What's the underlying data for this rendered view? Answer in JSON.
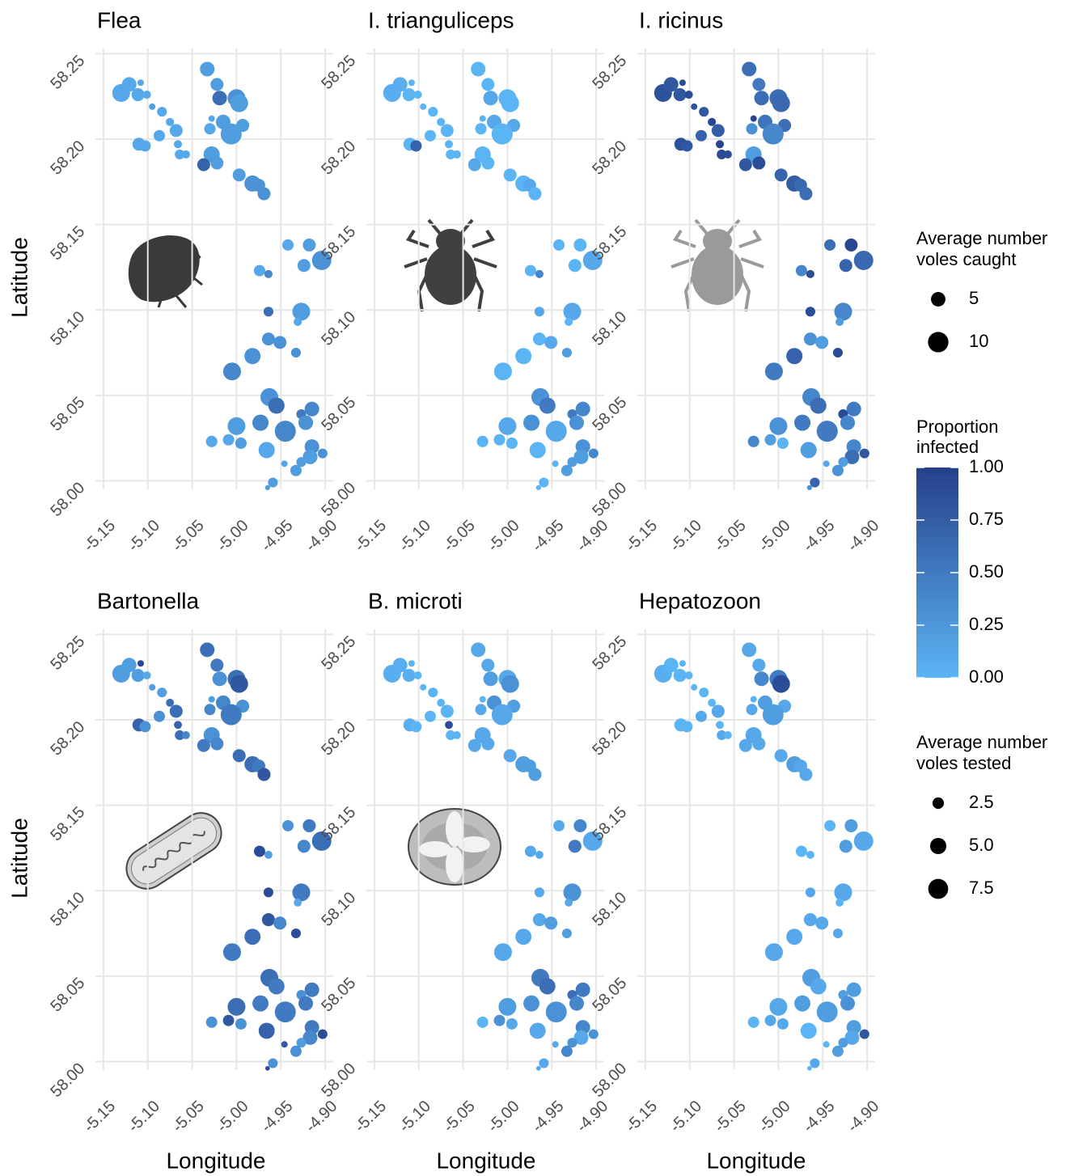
{
  "chart_data": {
    "type": "scatter",
    "x_label": "Longitude",
    "y_label": "Latitude",
    "xlim": [
      -5.159,
      -4.891
    ],
    "ylim": [
      57.995,
      58.253
    ],
    "xticks": [
      -5.15,
      {
        "value": -5.1,
        "label": "-5.10"
      },
      -5.05,
      {
        "value": -5,
        "label": "-5.00"
      },
      -4.95,
      {
        "value": -4.9,
        "label": "-4.90"
      }
    ],
    "yticks": [
      {
        "value": 58,
        "label": "58.00"
      },
      58.05,
      {
        "value": 58.1,
        "label": "58.10"
      },
      58.15,
      {
        "value": 58.2,
        "label": "58.20"
      },
      58.25
    ],
    "grid": true,
    "color_scale": [
      "#5bb4f4",
      "#26408b"
    ],
    "x": [
      -5.13,
      -5.121,
      -5.108,
      -5.111,
      -5.101,
      -5.095,
      -5.084,
      -5.11,
      -5.103,
      -5.087,
      -5.075,
      -5.068,
      -5.066,
      -5.064,
      -5.057,
      -5.033,
      -5.022,
      -5.019,
      -5.028,
      -5.03,
      -5.015,
      -5.0,
      -4.997,
      -4.993,
      -5.006,
      -5.028,
      -5.037,
      -5.022,
      -4.997,
      -4.982,
      -4.975,
      -4.969,
      -4.942,
      -4.918,
      -4.904,
      -4.924,
      -4.974,
      -4.964,
      -4.964,
      -4.927,
      -4.931,
      -4.964,
      -4.951,
      -4.933,
      -4.982,
      -5.005,
      -4.963,
      -4.955,
      -4.915,
      -4.927,
      -4.973,
      -4.922,
      -5.0,
      -4.945,
      -5.028,
      -5.009,
      -4.995,
      -4.966,
      -4.915,
      -4.903,
      -4.917,
      -4.927,
      -4.933,
      -4.946,
      -4.959,
      -4.965
    ],
    "y": [
      58.227,
      58.232,
      58.233,
      58.226,
      58.226,
      58.219,
      58.216,
      58.197,
      58.196,
      58.202,
      58.21,
      58.205,
      58.197,
      58.191,
      58.191,
      58.241,
      58.232,
      58.224,
      58.212,
      58.206,
      58.21,
      58.224,
      58.221,
      58.208,
      58.203,
      58.191,
      58.185,
      58.186,
      58.179,
      58.174,
      58.173,
      58.168,
      58.138,
      58.138,
      58.129,
      58.126,
      58.123,
      58.121,
      58.099,
      58.099,
      58.093,
      58.083,
      58.081,
      58.075,
      58.073,
      58.064,
      58.049,
      58.044,
      58.042,
      58.039,
      58.034,
      58.034,
      58.032,
      58.029,
      58.023,
      58.024,
      58.022,
      58.018,
      58.02,
      58.016,
      58.014,
      58.011,
      58.006,
      58.01,
      57.999,
      57.996
    ],
    "facets": [
      {
        "title": "Flea",
        "sizes": [
          7.6,
          5.1,
          1.0,
          4.0,
          1.6,
          1.0,
          2.3,
          4.0,
          3.1,
          3.1,
          1.6,
          4.0,
          1.6,
          2.3,
          1.6,
          5.1,
          4.0,
          5.1,
          1.0,
          3.1,
          5.1,
          7.6,
          7.6,
          4.0,
          10.6,
          6.3,
          4.0,
          4.0,
          4.0,
          6.3,
          4.0,
          4.0,
          3.1,
          4.0,
          9.0,
          4.0,
          3.1,
          1.6,
          2.3,
          7.6,
          1.6,
          4.0,
          4.0,
          2.3,
          6.3,
          7.6,
          7.6,
          6.3,
          5.1,
          2.3,
          6.3,
          5.1,
          7.6,
          10.6,
          3.1,
          3.1,
          3.1,
          6.3,
          5.1,
          2.3,
          5.1,
          2.3,
          3.1,
          1.0,
          2.3,
          0.6
        ],
        "values": [
          0.1,
          0.1,
          0.1,
          0.1,
          0.1,
          0.2,
          0.1,
          0.1,
          0.1,
          0.1,
          0.1,
          0.1,
          0.1,
          0.1,
          0.1,
          0.2,
          0.2,
          0.6,
          0.1,
          0.1,
          0.2,
          0.3,
          0.2,
          0.2,
          0.2,
          0.2,
          0.7,
          0.2,
          0.2,
          0.3,
          0.3,
          0.3,
          0.1,
          0.2,
          0.3,
          0.2,
          0.1,
          0.4,
          0.6,
          0.2,
          0.1,
          0.3,
          0.3,
          0.3,
          0.3,
          0.4,
          0.3,
          0.6,
          0.4,
          0.5,
          0.4,
          0.3,
          0.2,
          0.4,
          0.1,
          0.1,
          0.2,
          0.1,
          0.3,
          0.3,
          0.2,
          0.2,
          0.2,
          0.1,
          0.2,
          0.2
        ]
      },
      {
        "title": "I. trianguliceps",
        "sizes": [
          7.6,
          5.1,
          1.0,
          4.0,
          1.6,
          1.0,
          2.3,
          4.0,
          3.1,
          3.1,
          1.6,
          4.0,
          1.6,
          2.3,
          1.6,
          5.1,
          4.0,
          5.1,
          1.0,
          3.1,
          5.1,
          7.6,
          7.6,
          4.0,
          10.6,
          6.3,
          4.0,
          4.0,
          4.0,
          6.3,
          4.0,
          4.0,
          3.1,
          4.0,
          9.0,
          4.0,
          3.1,
          1.6,
          2.3,
          7.6,
          1.6,
          4.0,
          4.0,
          2.3,
          6.3,
          7.6,
          7.6,
          6.3,
          5.1,
          2.3,
          6.3,
          5.1,
          7.6,
          10.6,
          3.1,
          3.1,
          3.1,
          6.3,
          5.1,
          2.3,
          5.1,
          2.3,
          3.1,
          1.0,
          2.3,
          0.6
        ],
        "values": [
          0.05,
          0.05,
          0,
          0,
          0,
          0,
          0,
          0,
          0.7,
          0,
          0,
          0,
          0,
          0,
          0,
          0,
          0,
          0.1,
          0,
          0,
          0.1,
          0,
          0,
          0.1,
          0,
          0,
          0.1,
          0,
          0,
          0,
          0.1,
          0,
          0,
          0,
          0.1,
          0,
          0,
          0.4,
          0.1,
          0.1,
          0,
          0,
          0.1,
          0.2,
          0,
          0,
          0.3,
          0.5,
          0.4,
          0.5,
          0.3,
          0.3,
          0.1,
          0.1,
          0,
          0,
          0,
          0,
          0.3,
          0.4,
          0.2,
          0.2,
          0.2,
          0,
          0,
          0
        ]
      },
      {
        "title": "I. ricinus",
        "sizes": [
          7.6,
          5.1,
          1.0,
          4.0,
          1.6,
          1.0,
          2.3,
          4.0,
          3.1,
          3.1,
          1.6,
          4.0,
          1.6,
          2.3,
          1.6,
          5.1,
          4.0,
          5.1,
          1.0,
          3.1,
          5.1,
          7.6,
          7.6,
          4.0,
          10.6,
          6.3,
          4.0,
          4.0,
          4.0,
          6.3,
          4.0,
          4.0,
          3.1,
          4.0,
          9.0,
          4.0,
          3.1,
          1.6,
          2.3,
          7.6,
          1.6,
          4.0,
          4.0,
          2.3,
          6.3,
          7.6,
          7.6,
          6.3,
          5.1,
          2.3,
          6.3,
          5.1,
          7.6,
          10.6,
          3.1,
          3.1,
          3.1,
          6.3,
          5.1,
          2.3,
          5.1,
          2.3,
          3.1,
          1.0,
          2.3,
          0.6
        ],
        "values": [
          0.85,
          0.8,
          0.9,
          0.8,
          0.9,
          0.85,
          0.8,
          0.85,
          0.8,
          0.7,
          0.95,
          0.75,
          0.95,
          0.9,
          0.9,
          0.6,
          0.5,
          0.6,
          0.95,
          0.3,
          0.55,
          0.6,
          0.65,
          0.6,
          0.4,
          0.2,
          0.8,
          0.9,
          0.7,
          0.75,
          0.65,
          0.6,
          0.6,
          0.95,
          0.65,
          0.7,
          0.4,
          0.9,
          0.9,
          0.4,
          0.2,
          0.3,
          0.2,
          0.9,
          0.7,
          0.5,
          0.4,
          0.6,
          0.5,
          0.9,
          0.5,
          0.4,
          0.3,
          0.5,
          0.4,
          0.2,
          0,
          0.2,
          0.4,
          0.8,
          0.6,
          0.2,
          0.3,
          0.1,
          0.7,
          0.3
        ]
      },
      {
        "title": "Bartonella",
        "sizes": [
          6.0,
          4.0,
          0.8,
          3.2,
          1.2,
          0.8,
          1.8,
          3.2,
          2.4,
          2.4,
          1.2,
          3.2,
          1.2,
          1.8,
          1.2,
          4.0,
          3.2,
          4.0,
          0.8,
          2.4,
          4.0,
          6.0,
          6.0,
          3.2,
          8.3,
          4.9,
          3.2,
          3.2,
          3.2,
          4.9,
          3.2,
          3.2,
          2.4,
          3.2,
          7.1,
          3.2,
          2.4,
          1.2,
          1.8,
          6.0,
          1.2,
          3.2,
          3.2,
          1.8,
          4.9,
          6.0,
          6.0,
          4.9,
          4.0,
          1.8,
          4.9,
          4.0,
          6.0,
          8.3,
          2.4,
          2.4,
          2.4,
          4.9,
          4.0,
          1.8,
          4.0,
          1.8,
          2.4,
          0.8,
          1.8,
          0.4
        ],
        "values": [
          0.2,
          0.2,
          0.95,
          0.2,
          0.1,
          0.2,
          0.2,
          0.7,
          0.3,
          0.3,
          0.6,
          0.6,
          0.7,
          0.6,
          0.4,
          0.6,
          0.5,
          0.3,
          0.2,
          0.4,
          0.4,
          0.6,
          0.8,
          0.3,
          0.5,
          0.3,
          0.5,
          0.4,
          0.6,
          0.6,
          0.5,
          0.8,
          0.3,
          0.5,
          0.6,
          0.4,
          0.9,
          0.2,
          0.9,
          0.5,
          0.1,
          0.8,
          0.4,
          0.9,
          0.6,
          0.5,
          0.6,
          0.5,
          0.5,
          0.3,
          0.5,
          0.5,
          0.6,
          0.5,
          0.3,
          0.8,
          0.3,
          0.7,
          0.5,
          0.9,
          0.4,
          0.2,
          0.3,
          0.8,
          0.3,
          0.9
        ]
      },
      {
        "title": "B. microti",
        "sizes": [
          6.0,
          4.0,
          0.8,
          3.2,
          1.2,
          0.8,
          1.8,
          3.2,
          2.4,
          2.4,
          1.2,
          3.2,
          1.2,
          1.8,
          1.2,
          4.0,
          3.2,
          4.0,
          0.8,
          2.4,
          4.0,
          6.0,
          6.0,
          3.2,
          8.3,
          4.9,
          3.2,
          3.2,
          3.2,
          4.9,
          3.2,
          3.2,
          2.4,
          3.2,
          7.1,
          3.2,
          2.4,
          1.2,
          1.8,
          6.0,
          1.2,
          3.2,
          3.2,
          1.8,
          4.9,
          6.0,
          6.0,
          4.9,
          4.0,
          1.8,
          4.9,
          4.0,
          6.0,
          8.3,
          2.4,
          2.4,
          2.4,
          4.9,
          4.0,
          1.8,
          4.0,
          1.8,
          2.4,
          0.8,
          1.8,
          0.4
        ],
        "values": [
          0.05,
          0.05,
          0,
          0.05,
          0,
          0,
          0,
          0.05,
          0,
          0,
          0,
          0,
          0.9,
          0,
          0,
          0.1,
          0.1,
          0.2,
          0,
          0.1,
          0.3,
          0.1,
          0.3,
          0.2,
          0.1,
          0.1,
          0.1,
          0.1,
          0.1,
          0.2,
          0.2,
          0.2,
          0.1,
          0.4,
          0.1,
          0.5,
          0.1,
          0.1,
          0.1,
          0.3,
          0.1,
          0.1,
          0.2,
          0.2,
          0.1,
          0.1,
          0.5,
          0.6,
          0.5,
          0.6,
          0.3,
          0.4,
          0.2,
          0.3,
          0,
          0.3,
          0.1,
          0.1,
          0.4,
          0.3,
          0.1,
          0.3,
          0.4,
          0.1,
          0.1,
          0.1
        ]
      },
      {
        "title": "Hepatozoon",
        "sizes": [
          6.0,
          4.0,
          0.8,
          3.2,
          1.2,
          0.8,
          1.8,
          3.2,
          2.4,
          2.4,
          1.2,
          3.2,
          1.2,
          1.8,
          1.2,
          4.0,
          3.2,
          4.0,
          0.8,
          2.4,
          4.0,
          6.0,
          6.0,
          3.2,
          8.3,
          4.9,
          3.2,
          3.2,
          3.2,
          4.9,
          3.2,
          3.2,
          2.4,
          3.2,
          7.1,
          3.2,
          2.4,
          1.2,
          1.8,
          6.0,
          1.2,
          3.2,
          3.2,
          1.8,
          4.9,
          6.0,
          6.0,
          4.9,
          4.0,
          1.8,
          4.9,
          4.0,
          6.0,
          8.3,
          2.4,
          2.4,
          2.4,
          4.9,
          4.0,
          1.8,
          4.0,
          1.8,
          2.4,
          0.8,
          1.8,
          0.4
        ],
        "values": [
          0.05,
          0,
          0,
          0,
          0,
          0,
          0,
          0,
          0,
          0.1,
          0,
          0.1,
          0,
          0.1,
          0,
          0.1,
          0.1,
          0.4,
          0,
          0.1,
          0.2,
          0.5,
          0.9,
          0.1,
          0.2,
          0.1,
          0.1,
          0.1,
          0.1,
          0.2,
          0.1,
          0.1,
          0,
          0.2,
          0.1,
          0.2,
          0,
          0,
          0.1,
          0.1,
          0,
          0.1,
          0.1,
          0.1,
          0.1,
          0.1,
          0.2,
          0.1,
          0.2,
          0.2,
          0.2,
          0.3,
          0.1,
          0.2,
          0,
          0.1,
          0.1,
          0,
          0.2,
          0.8,
          0.1,
          0.2,
          0.2,
          0,
          0.1,
          0
        ]
      }
    ],
    "size_legends": [
      {
        "title": [
          "Average number",
          "voles caught"
        ],
        "values": [
          5,
          10
        ]
      },
      {
        "title": [
          "Average number",
          "voles tested"
        ],
        "values": [
          2.5,
          {
            "value": 5,
            "label": "5.0"
          },
          7.5
        ]
      }
    ],
    "color_legend": {
      "title": [
        "Proportion",
        "infected"
      ],
      "lim": [
        0,
        1
      ],
      "ticks": [
        {
          "value": 0,
          "label": "0.00"
        },
        0.25,
        {
          "value": 0.5,
          "label": "0.50"
        },
        0.75,
        {
          "value": 1,
          "label": "1.00"
        }
      ]
    }
  }
}
